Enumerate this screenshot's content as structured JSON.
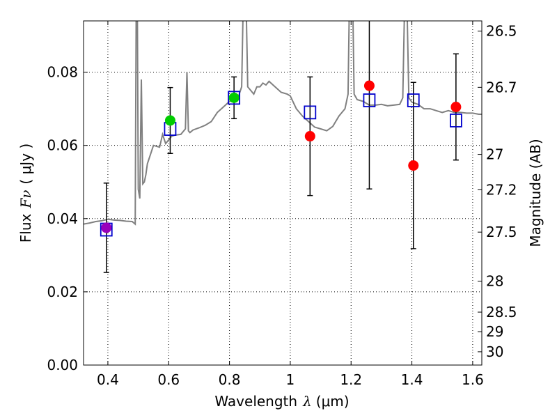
{
  "chart_data": {
    "type": "scatter",
    "xlabel_prefix": "Wavelength",
    "xlabel_symbol": "λ",
    "xlabel_unit": "(μm)",
    "ylabel_prefix": "Flux",
    "ylabel_symbol": "Fν",
    "ylabel_unit": "( μJy )",
    "y2label": "Magnitude (AB)",
    "xlim": [
      0.32,
      1.63
    ],
    "ylim": [
      0.0,
      0.094
    ],
    "x_ticks": [
      {
        "value": 0.4,
        "label": "0.4"
      },
      {
        "value": 0.6,
        "label": "0.6"
      },
      {
        "value": 0.8,
        "label": "0.8"
      },
      {
        "value": 1.0,
        "label": "1"
      },
      {
        "value": 1.2,
        "label": "1.2"
      },
      {
        "value": 1.4,
        "label": "1.4"
      },
      {
        "value": 1.6,
        "label": "1.6"
      }
    ],
    "y_ticks": [
      {
        "value": 0.0,
        "label": "0.00"
      },
      {
        "value": 0.02,
        "label": "0.02"
      },
      {
        "value": 0.04,
        "label": "0.04"
      },
      {
        "value": 0.06,
        "label": "0.06"
      },
      {
        "value": 0.08,
        "label": "0.08"
      }
    ],
    "y2_ticks": [
      {
        "value": 26.5,
        "label": "26.5"
      },
      {
        "value": 26.7,
        "label": "26.7"
      },
      {
        "value": 27.0,
        "label": "27"
      },
      {
        "value": 27.2,
        "label": "27.2"
      },
      {
        "value": 27.5,
        "label": "27.5"
      },
      {
        "value": 28.0,
        "label": "28"
      },
      {
        "value": 28.5,
        "label": "28.5"
      },
      {
        "value": 29.0,
        "label": "29"
      },
      {
        "value": 30.0,
        "label": "30"
      }
    ],
    "grid": true,
    "observed": [
      {
        "x": 0.395,
        "y": 0.0375,
        "err": 0.0122,
        "color": "#9900bb"
      },
      {
        "x": 0.605,
        "y": 0.0668,
        "err": 0.009,
        "color": "#00cc00"
      },
      {
        "x": 0.815,
        "y": 0.073,
        "err": 0.0057,
        "color": "#00cc00"
      },
      {
        "x": 1.065,
        "y": 0.0625,
        "err": 0.0162,
        "color": "#ff0000"
      },
      {
        "x": 1.26,
        "y": 0.0763,
        "err": 0.0282,
        "color": "#ff0000"
      },
      {
        "x": 1.405,
        "y": 0.0545,
        "err": 0.0227,
        "color": "#ff0000"
      },
      {
        "x": 1.545,
        "y": 0.0705,
        "err": 0.0145,
        "color": "#ff0000"
      }
    ],
    "model_photometry": [
      {
        "x": 0.395,
        "y": 0.037
      },
      {
        "x": 0.605,
        "y": 0.0645
      },
      {
        "x": 0.815,
        "y": 0.073
      },
      {
        "x": 1.065,
        "y": 0.069
      },
      {
        "x": 1.26,
        "y": 0.0723
      },
      {
        "x": 1.405,
        "y": 0.0723
      },
      {
        "x": 1.545,
        "y": 0.0668
      }
    ],
    "spectrum": {
      "x": [
        0.32,
        0.34,
        0.36,
        0.38,
        0.4,
        0.42,
        0.44,
        0.46,
        0.48,
        0.49,
        0.495,
        0.5,
        0.505,
        0.51,
        0.515,
        0.52,
        0.525,
        0.53,
        0.55,
        0.57,
        0.58,
        0.59,
        0.6,
        0.61,
        0.62,
        0.64,
        0.655,
        0.66,
        0.665,
        0.67,
        0.68,
        0.7,
        0.72,
        0.74,
        0.76,
        0.78,
        0.8,
        0.81,
        0.815,
        0.82,
        0.825,
        0.83,
        0.84,
        0.85,
        0.86,
        0.87,
        0.88,
        0.89,
        0.9,
        0.91,
        0.92,
        0.93,
        0.95,
        0.97,
        0.99,
        1.0,
        1.02,
        1.04,
        1.06,
        1.08,
        1.1,
        1.12,
        1.14,
        1.16,
        1.18,
        1.19,
        1.2,
        1.21,
        1.22,
        1.24,
        1.26,
        1.28,
        1.3,
        1.32,
        1.34,
        1.36,
        1.37,
        1.38,
        1.39,
        1.4,
        1.42,
        1.44,
        1.46,
        1.48,
        1.5,
        1.52,
        1.54,
        1.56,
        1.58,
        1.6,
        1.62,
        1.63
      ],
      "y": [
        0.0385,
        0.0388,
        0.0392,
        0.0394,
        0.0398,
        0.0396,
        0.0395,
        0.0393,
        0.0392,
        0.0385,
        0.13,
        0.048,
        0.0455,
        0.078,
        0.0495,
        0.05,
        0.052,
        0.055,
        0.06,
        0.0595,
        0.063,
        0.0605,
        0.0615,
        0.0625,
        0.0628,
        0.063,
        0.0645,
        0.08,
        0.064,
        0.0635,
        0.0642,
        0.0648,
        0.0655,
        0.0665,
        0.069,
        0.0705,
        0.072,
        0.0725,
        0.072,
        0.072,
        0.073,
        0.0735,
        0.076,
        0.12,
        0.076,
        0.075,
        0.074,
        0.076,
        0.076,
        0.077,
        0.0765,
        0.0775,
        0.076,
        0.0745,
        0.074,
        0.0735,
        0.07,
        0.068,
        0.0665,
        0.065,
        0.0645,
        0.064,
        0.0652,
        0.068,
        0.07,
        0.074,
        0.13,
        0.074,
        0.0725,
        0.072,
        0.071,
        0.071,
        0.0712,
        0.0708,
        0.071,
        0.0712,
        0.073,
        0.115,
        0.073,
        0.0718,
        0.0712,
        0.07,
        0.07,
        0.0695,
        0.069,
        0.0695,
        0.069,
        0.069,
        0.0688,
        0.0688,
        0.0685,
        0.0685
      ]
    },
    "colors": {
      "spectrum": "#808080",
      "model_box": "#0000cc",
      "errorbar": "#000000"
    }
  }
}
